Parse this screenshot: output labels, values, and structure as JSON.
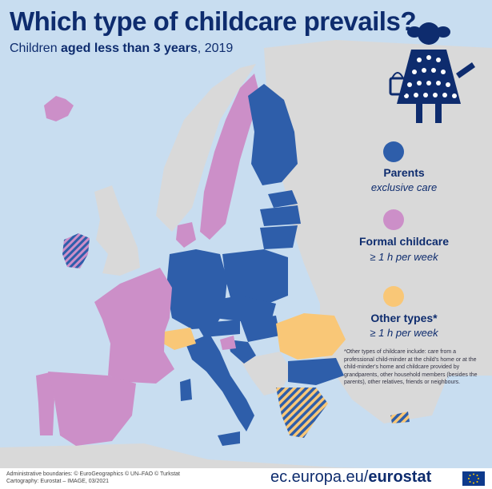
{
  "title": "Which type of childcare prevails?",
  "subtitle": {
    "prefix": "Children ",
    "bold": "aged less than 3 years",
    "suffix": ", 2019"
  },
  "legend": [
    {
      "key": "parents",
      "title": "Parents",
      "subtitle": "exclusive care",
      "color": "#2e5eaa"
    },
    {
      "key": "formal",
      "title": "Formal childcare",
      "subtitle": "≥ 1 h per week",
      "color": "#cc8fc8"
    },
    {
      "key": "other",
      "title": "Other types*",
      "subtitle": "≥ 1 h per week",
      "color": "#f9c777"
    }
  ],
  "footnote": "*Other types of childcare include: care from a professional child-minder at the child's home or at the child-minder's home and childcare provided by grandparents, other household members (besides the parents), other relatives, friends or neighbours.",
  "credits": {
    "line1": "Administrative boundaries: © EuroGeographics © UN–FAO © Turkstat",
    "line2": "Cartography: Eurostat – IMAGE, 03/2021"
  },
  "website": {
    "domain": "ec.europa.eu/",
    "brand": "eurostat"
  },
  "colors": {
    "parents": "#2e5eaa",
    "formal": "#cc8fc8",
    "other": "#f9c777",
    "non_eu_land": "#d9d9d9",
    "sea": "#c8ddf0",
    "title": "#0e2c6e"
  },
  "icons": [
    "child-with-bucket-icon",
    "eu-flag-icon"
  ]
}
